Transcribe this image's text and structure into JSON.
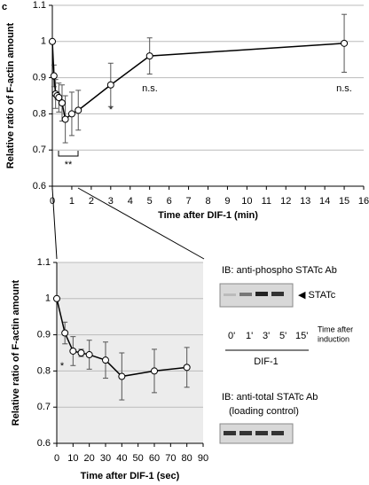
{
  "panel_label": "c",
  "chart_data": [
    {
      "type": "line",
      "color": "#000000",
      "x_label": "Time after DIF-1 (min)",
      "y_label": "Relative ratio of F-actin amount",
      "x": [
        0,
        0.083,
        0.167,
        0.25,
        0.333,
        0.5,
        0.667,
        1,
        1.333,
        3,
        5,
        15
      ],
      "values": [
        1.0,
        0.905,
        0.855,
        0.85,
        0.845,
        0.83,
        0.785,
        0.8,
        0.81,
        0.88,
        0.96,
        0.995
      ],
      "errors": [
        0,
        0.03,
        0.04,
        0.01,
        0.04,
        0.05,
        0.065,
        0.06,
        0.055,
        0.06,
        0.05,
        0.08
      ],
      "xlim": [
        0,
        16
      ],
      "xticks": [
        0,
        1,
        2,
        3,
        4,
        5,
        6,
        7,
        8,
        9,
        10,
        11,
        12,
        13,
        14,
        15,
        16
      ],
      "ylim": [
        0.6,
        1.1
      ],
      "yticks": [
        0.6,
        0.7,
        0.8,
        0.9,
        1,
        1.1
      ],
      "grid": true,
      "annotations": [
        "n.s.",
        "n.s.",
        "*",
        "**"
      ]
    },
    {
      "type": "line",
      "color": "#000000",
      "x_label": "Time after DIF-1 (sec)",
      "y_label": "Relative ratio of F-actin amount",
      "x": [
        0,
        5,
        10,
        15,
        20,
        30,
        40,
        60,
        80
      ],
      "values": [
        1.0,
        0.905,
        0.855,
        0.85,
        0.845,
        0.83,
        0.785,
        0.8,
        0.81
      ],
      "errors": [
        0,
        0.03,
        0.04,
        0.01,
        0.04,
        0.05,
        0.065,
        0.06,
        0.055
      ],
      "xlim": [
        0,
        90
      ],
      "xticks": [
        0,
        10,
        20,
        30,
        40,
        50,
        60,
        70,
        80,
        90
      ],
      "ylim": [
        0.6,
        1.1
      ],
      "yticks": [
        0.6,
        0.7,
        0.8,
        0.9,
        1,
        1.1
      ],
      "grid": true,
      "annotations": [
        "*"
      ]
    }
  ],
  "blot": {
    "phospho_title": "IB: anti-phospho STATc Ab",
    "band_label": "◀ STATc",
    "lanes": [
      "0'",
      "1'",
      "3'",
      "5'",
      "15'"
    ],
    "time_note": [
      "Time after",
      "induction"
    ],
    "treatment": "DIF-1",
    "total_title": "IB: anti-total STATc Ab",
    "total_note": "(loading control)"
  }
}
